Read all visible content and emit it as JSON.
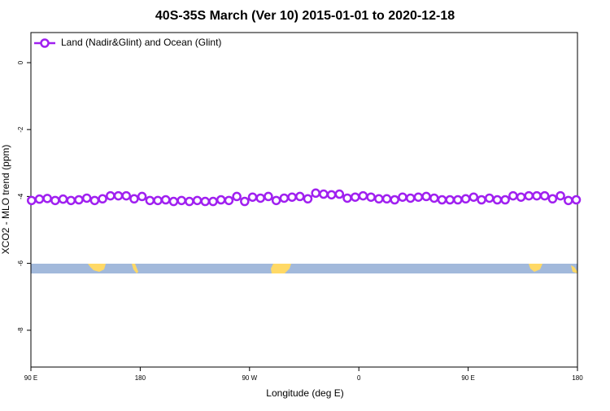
{
  "chart_data": {
    "type": "line",
    "title": "40S-35S March (Ver 10)   2015-01-01 to 2020-12-18",
    "x_label": "Longitude (deg E)",
    "y_label": "XCO2 - MLO trend (ppm)",
    "xlim": [
      90,
      540
    ],
    "xticks": [
      {
        "value": 90,
        "label": "90 E"
      },
      {
        "value": 180,
        "label": "180"
      },
      {
        "value": 270,
        "label": "90 W"
      },
      {
        "value": 360,
        "label": "0"
      },
      {
        "value": 450,
        "label": "90 E"
      },
      {
        "value": 540,
        "label": "180"
      }
    ],
    "ylim": [
      -9.1,
      0.9
    ],
    "yticks": [
      0,
      -2,
      -4,
      -6,
      -8
    ],
    "legend": "top-left",
    "series": [
      {
        "name": "Land (Nadir&Glint) and Ocean (Glint)",
        "color": "#a020f0",
        "x": [
          90.5,
          97,
          103.5,
          110,
          116.5,
          123,
          129.5,
          136,
          142.5,
          149,
          155.5,
          162,
          168.5,
          175,
          181.5,
          188,
          194.5,
          201,
          207.5,
          214,
          220.5,
          227,
          233.5,
          240,
          246.5,
          253,
          259.5,
          266,
          272.5,
          279,
          285.5,
          292,
          298.5,
          305,
          311.5,
          318,
          324.5,
          331,
          337.5,
          344,
          350.5,
          357,
          363.5,
          370,
          376.5,
          383,
          389.5,
          396,
          402.5,
          409,
          415.5,
          422,
          428.5,
          435,
          441.5,
          448,
          454.5,
          461,
          467.5,
          474,
          480.5,
          487,
          493.5,
          500,
          506.5,
          513,
          519.5,
          526,
          532.5,
          539
        ],
        "values": [
          -4.12,
          -4.08,
          -4.06,
          -4.12,
          -4.08,
          -4.12,
          -4.1,
          -4.05,
          -4.12,
          -4.07,
          -3.98,
          -3.98,
          -3.98,
          -4.07,
          -4.0,
          -4.12,
          -4.12,
          -4.1,
          -4.15,
          -4.12,
          -4.15,
          -4.12,
          -4.15,
          -4.15,
          -4.1,
          -4.12,
          -4.0,
          -4.15,
          -4.02,
          -4.05,
          -4.0,
          -4.12,
          -4.05,
          -4.02,
          -4.0,
          -4.07,
          -3.9,
          -3.93,
          -3.95,
          -3.93,
          -4.05,
          -4.02,
          -3.98,
          -4.02,
          -4.07,
          -4.07,
          -4.1,
          -4.02,
          -4.05,
          -4.02,
          -4.0,
          -4.05,
          -4.1,
          -4.1,
          -4.1,
          -4.07,
          -4.02,
          -4.1,
          -4.05,
          -4.1,
          -4.1,
          -3.98,
          -4.02,
          -3.98,
          -3.98,
          -3.98,
          -4.07,
          -3.98,
          -4.12,
          -4.1
        ]
      }
    ]
  }
}
